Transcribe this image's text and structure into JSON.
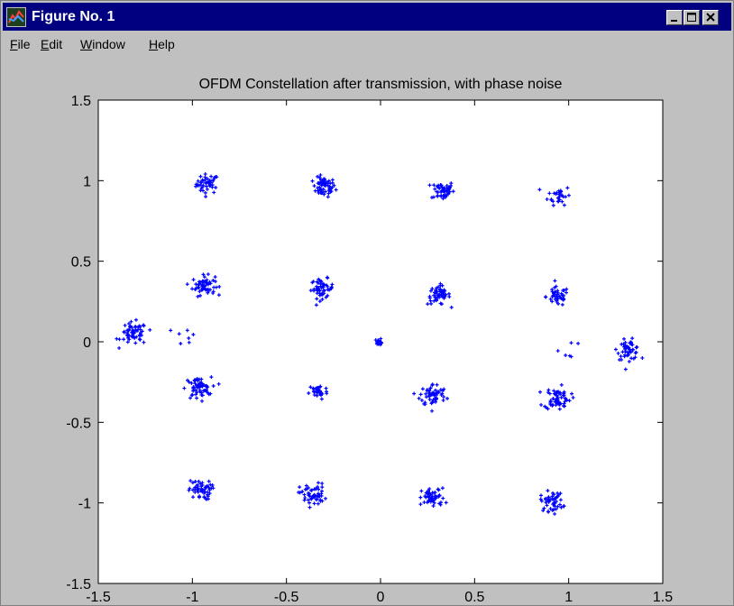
{
  "window": {
    "title": "Figure No. 1",
    "controls": {
      "minimize": "_",
      "maximize": "□",
      "close": "×"
    }
  },
  "menu": [
    {
      "label": "File",
      "accel": "F",
      "rest": "ile"
    },
    {
      "label": "Edit",
      "accel": "E",
      "rest": "dit"
    },
    {
      "label": "Window",
      "accel": "W",
      "rest": "indow"
    },
    {
      "label": "Help",
      "accel": "H",
      "rest": "elp"
    }
  ],
  "colors": {
    "titlebar": "#000080",
    "window": "#c0c0c0",
    "plot_bg": "#ffffff",
    "marker": "#0000ff"
  },
  "chart_data": {
    "type": "scatter",
    "title": "OFDM Constellation after transmission, with phase noise",
    "xlabel": "",
    "ylabel": "",
    "xlim": [
      -1.5,
      1.5
    ],
    "ylim": [
      -1.5,
      1.5
    ],
    "xticks": [
      -1.5,
      -1,
      -0.5,
      0,
      0.5,
      1,
      1.5
    ],
    "xtick_labels": [
      "-1.5",
      "-1",
      "-0.5",
      "0",
      "0.5",
      "1",
      "1.5"
    ],
    "yticks": [
      -1.5,
      -1,
      -0.5,
      0,
      0.5,
      1,
      1.5
    ],
    "ytick_labels": [
      "-1.5",
      "-1",
      "-0.5",
      "0",
      "0.5",
      "1",
      "1.5"
    ],
    "grid": false,
    "legend": false,
    "marker": "+",
    "clusters": [
      {
        "center": [
          -0.92,
          0.98
        ],
        "spread": 0.03,
        "count": 45
      },
      {
        "center": [
          -0.3,
          0.96
        ],
        "spread": 0.03,
        "count": 60
      },
      {
        "center": [
          0.33,
          0.94
        ],
        "spread": 0.03,
        "count": 50
      },
      {
        "center": [
          0.95,
          0.91
        ],
        "spread": 0.03,
        "count": 30
      },
      {
        "center": [
          -0.94,
          0.35
        ],
        "spread": 0.03,
        "count": 60
      },
      {
        "center": [
          -0.31,
          0.33
        ],
        "spread": 0.03,
        "count": 55
      },
      {
        "center": [
          0.31,
          0.29
        ],
        "spread": 0.03,
        "count": 55
      },
      {
        "center": [
          0.94,
          0.28
        ],
        "spread": 0.03,
        "count": 45
      },
      {
        "center": [
          -1.31,
          0.05
        ],
        "spread": 0.035,
        "count": 60
      },
      {
        "center": [
          -1.03,
          0.04
        ],
        "spread": 0.03,
        "count": 7
      },
      {
        "center": [
          -0.01,
          0.0
        ],
        "spread": 0.01,
        "count": 15
      },
      {
        "center": [
          1.01,
          -0.05
        ],
        "spread": 0.03,
        "count": 6
      },
      {
        "center": [
          1.32,
          -0.05
        ],
        "spread": 0.03,
        "count": 50
      },
      {
        "center": [
          -0.97,
          -0.29
        ],
        "spread": 0.035,
        "count": 60
      },
      {
        "center": [
          -0.33,
          -0.31
        ],
        "spread": 0.025,
        "count": 35
      },
      {
        "center": [
          0.28,
          -0.33
        ],
        "spread": 0.035,
        "count": 60
      },
      {
        "center": [
          0.94,
          -0.35
        ],
        "spread": 0.035,
        "count": 65
      },
      {
        "center": [
          -0.96,
          -0.92
        ],
        "spread": 0.03,
        "count": 55
      },
      {
        "center": [
          -0.36,
          -0.95
        ],
        "spread": 0.035,
        "count": 55
      },
      {
        "center": [
          0.28,
          -0.97
        ],
        "spread": 0.03,
        "count": 55
      },
      {
        "center": [
          0.91,
          -0.99
        ],
        "spread": 0.03,
        "count": 50
      }
    ]
  }
}
